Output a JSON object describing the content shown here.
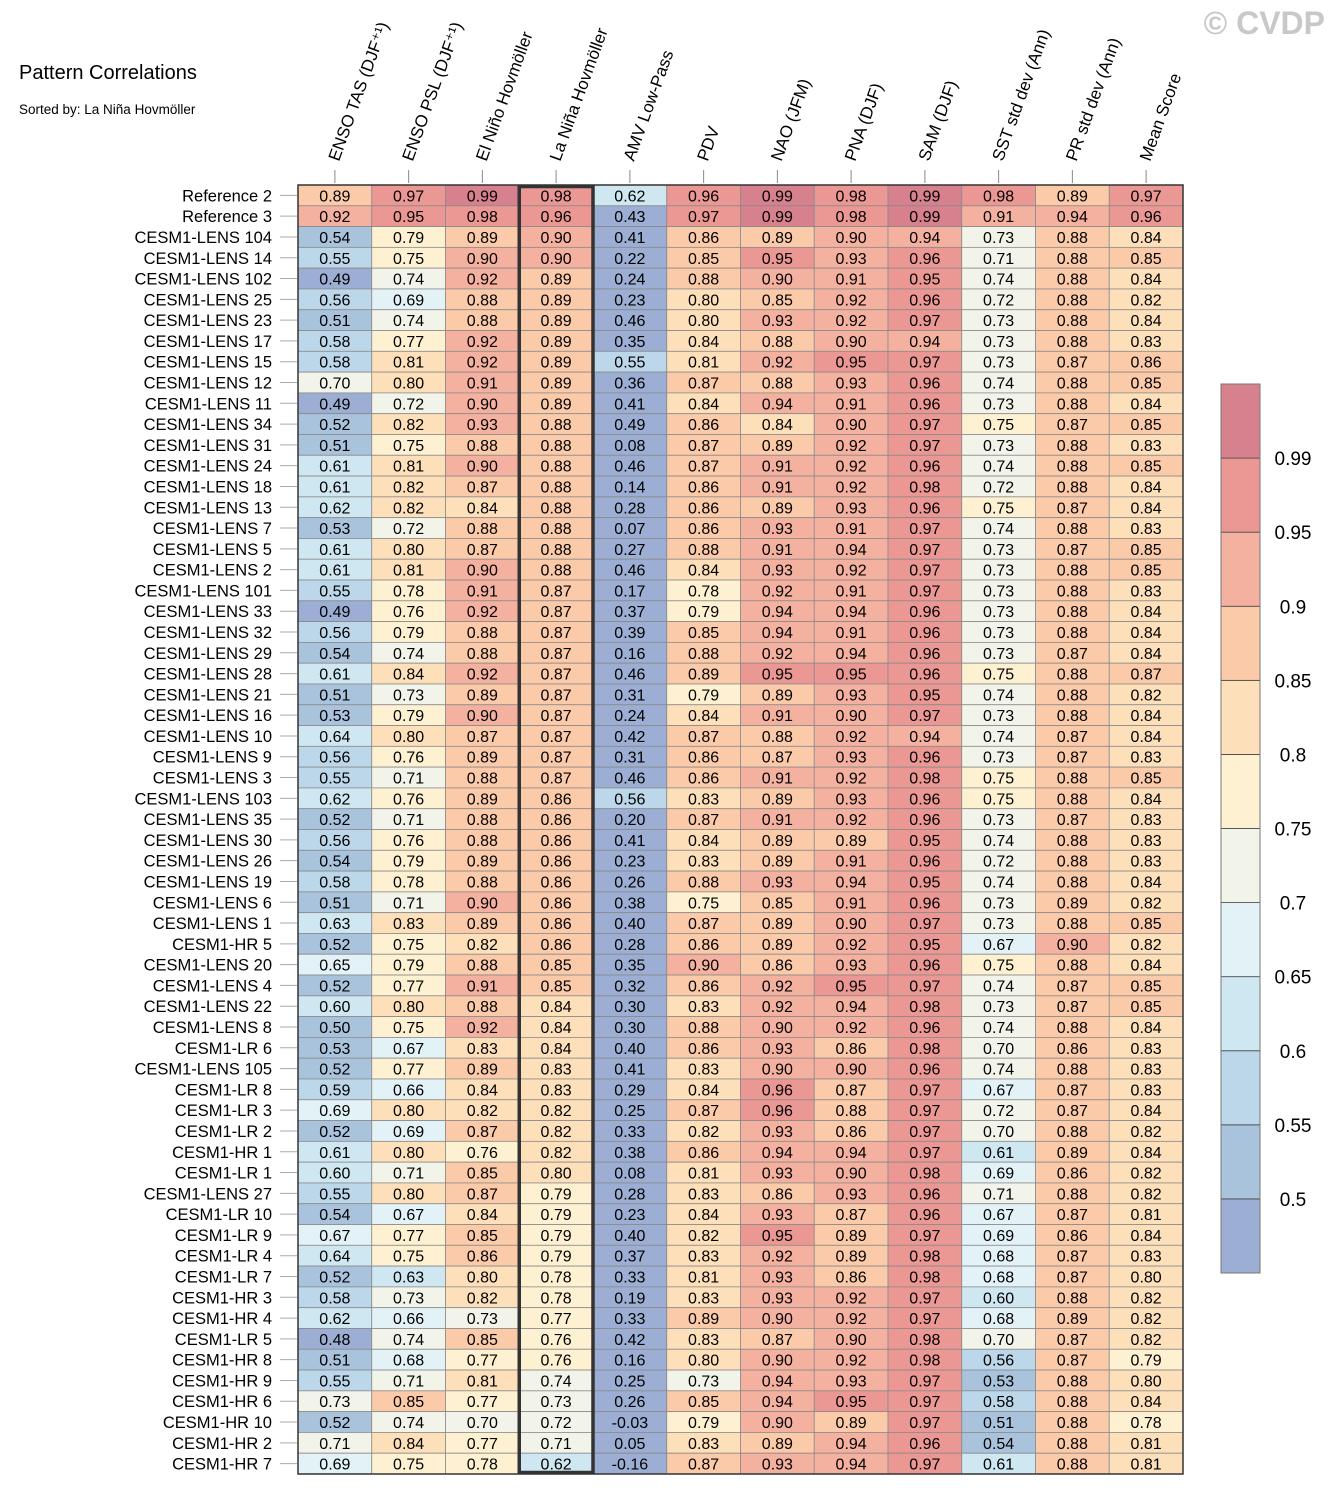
{
  "title": "Pattern Correlations",
  "subtitle": "Sorted by: La Niña Hovmöller",
  "watermark": "© CVDP",
  "chart_data": {
    "type": "heatmap",
    "title": "Pattern Correlations",
    "subtitle": "Sorted by: La Niña Hovmöller",
    "highlighted_column": "La Niña Hovmöller",
    "columns": [
      "ENSO TAS (DJF⁺¹)",
      "ENSO PSL (DJF⁺¹)",
      "El Niño Hovmöller",
      "La Niña Hovmöller",
      "AMV Low-Pass",
      "PDV",
      "NAO (JFM)",
      "PNA (DJF)",
      "SAM (DJF)",
      "SST std dev (Ann)",
      "PR std dev (Ann)",
      "Mean Score"
    ],
    "rows": [
      {
        "label": "Reference 2",
        "values": [
          0.89,
          0.97,
          0.99,
          0.98,
          0.62,
          0.96,
          0.99,
          0.98,
          0.99,
          0.98,
          0.89,
          0.97
        ]
      },
      {
        "label": "Reference 3",
        "values": [
          0.92,
          0.95,
          0.98,
          0.96,
          0.43,
          0.97,
          0.99,
          0.98,
          0.99,
          0.91,
          0.94,
          0.96
        ]
      },
      {
        "label": "CESM1-LENS 104",
        "values": [
          0.54,
          0.79,
          0.89,
          0.9,
          0.41,
          0.86,
          0.89,
          0.9,
          0.94,
          0.73,
          0.88,
          0.84
        ]
      },
      {
        "label": "CESM1-LENS 14",
        "values": [
          0.55,
          0.75,
          0.9,
          0.9,
          0.22,
          0.85,
          0.95,
          0.93,
          0.96,
          0.71,
          0.88,
          0.85
        ]
      },
      {
        "label": "CESM1-LENS 102",
        "values": [
          0.49,
          0.74,
          0.92,
          0.89,
          0.24,
          0.88,
          0.9,
          0.91,
          0.95,
          0.74,
          0.88,
          0.84
        ]
      },
      {
        "label": "CESM1-LENS 25",
        "values": [
          0.56,
          0.69,
          0.88,
          0.89,
          0.23,
          0.8,
          0.85,
          0.92,
          0.96,
          0.72,
          0.88,
          0.82
        ]
      },
      {
        "label": "CESM1-LENS 23",
        "values": [
          0.51,
          0.74,
          0.88,
          0.89,
          0.46,
          0.8,
          0.93,
          0.92,
          0.97,
          0.73,
          0.88,
          0.84
        ]
      },
      {
        "label": "CESM1-LENS 17",
        "values": [
          0.58,
          0.77,
          0.92,
          0.89,
          0.35,
          0.84,
          0.88,
          0.9,
          0.94,
          0.73,
          0.88,
          0.83
        ]
      },
      {
        "label": "CESM1-LENS 15",
        "values": [
          0.58,
          0.81,
          0.92,
          0.89,
          0.55,
          0.81,
          0.92,
          0.95,
          0.97,
          0.73,
          0.87,
          0.86
        ]
      },
      {
        "label": "CESM1-LENS 12",
        "values": [
          0.7,
          0.8,
          0.91,
          0.89,
          0.36,
          0.87,
          0.88,
          0.93,
          0.96,
          0.74,
          0.88,
          0.85
        ]
      },
      {
        "label": "CESM1-LENS 11",
        "values": [
          0.49,
          0.72,
          0.9,
          0.89,
          0.41,
          0.84,
          0.94,
          0.91,
          0.96,
          0.73,
          0.88,
          0.84
        ]
      },
      {
        "label": "CESM1-LENS 34",
        "values": [
          0.52,
          0.82,
          0.93,
          0.88,
          0.49,
          0.86,
          0.84,
          0.9,
          0.97,
          0.75,
          0.87,
          0.85
        ]
      },
      {
        "label": "CESM1-LENS 31",
        "values": [
          0.51,
          0.75,
          0.88,
          0.88,
          0.08,
          0.87,
          0.89,
          0.92,
          0.97,
          0.73,
          0.88,
          0.83
        ]
      },
      {
        "label": "CESM1-LENS 24",
        "values": [
          0.61,
          0.81,
          0.9,
          0.88,
          0.46,
          0.87,
          0.91,
          0.92,
          0.96,
          0.74,
          0.88,
          0.85
        ]
      },
      {
        "label": "CESM1-LENS 18",
        "values": [
          0.61,
          0.82,
          0.87,
          0.88,
          0.14,
          0.86,
          0.91,
          0.92,
          0.98,
          0.72,
          0.88,
          0.84
        ]
      },
      {
        "label": "CESM1-LENS 13",
        "values": [
          0.62,
          0.82,
          0.84,
          0.88,
          0.28,
          0.86,
          0.89,
          0.93,
          0.96,
          0.75,
          0.87,
          0.84
        ]
      },
      {
        "label": "CESM1-LENS 7",
        "values": [
          0.53,
          0.72,
          0.88,
          0.88,
          0.07,
          0.86,
          0.93,
          0.91,
          0.97,
          0.74,
          0.88,
          0.83
        ]
      },
      {
        "label": "CESM1-LENS 5",
        "values": [
          0.61,
          0.8,
          0.87,
          0.88,
          0.27,
          0.88,
          0.91,
          0.94,
          0.97,
          0.73,
          0.87,
          0.85
        ]
      },
      {
        "label": "CESM1-LENS 2",
        "values": [
          0.61,
          0.81,
          0.9,
          0.88,
          0.46,
          0.84,
          0.93,
          0.92,
          0.97,
          0.73,
          0.88,
          0.85
        ]
      },
      {
        "label": "CESM1-LENS 101",
        "values": [
          0.55,
          0.78,
          0.91,
          0.87,
          0.17,
          0.78,
          0.92,
          0.91,
          0.97,
          0.73,
          0.88,
          0.83
        ]
      },
      {
        "label": "CESM1-LENS 33",
        "values": [
          0.49,
          0.76,
          0.92,
          0.87,
          0.37,
          0.79,
          0.94,
          0.94,
          0.96,
          0.73,
          0.88,
          0.84
        ]
      },
      {
        "label": "CESM1-LENS 32",
        "values": [
          0.56,
          0.79,
          0.88,
          0.87,
          0.39,
          0.85,
          0.94,
          0.91,
          0.96,
          0.73,
          0.88,
          0.84
        ]
      },
      {
        "label": "CESM1-LENS 29",
        "values": [
          0.54,
          0.74,
          0.88,
          0.87,
          0.16,
          0.88,
          0.92,
          0.94,
          0.96,
          0.73,
          0.87,
          0.84
        ]
      },
      {
        "label": "CESM1-LENS 28",
        "values": [
          0.61,
          0.84,
          0.92,
          0.87,
          0.46,
          0.89,
          0.95,
          0.95,
          0.96,
          0.75,
          0.88,
          0.87
        ]
      },
      {
        "label": "CESM1-LENS 21",
        "values": [
          0.51,
          0.73,
          0.89,
          0.87,
          0.31,
          0.79,
          0.89,
          0.93,
          0.95,
          0.74,
          0.88,
          0.82
        ]
      },
      {
        "label": "CESM1-LENS 16",
        "values": [
          0.53,
          0.79,
          0.9,
          0.87,
          0.24,
          0.84,
          0.91,
          0.9,
          0.97,
          0.73,
          0.88,
          0.84
        ]
      },
      {
        "label": "CESM1-LENS 10",
        "values": [
          0.64,
          0.8,
          0.87,
          0.87,
          0.42,
          0.87,
          0.88,
          0.92,
          0.94,
          0.74,
          0.87,
          0.84
        ]
      },
      {
        "label": "CESM1-LENS 9",
        "values": [
          0.56,
          0.76,
          0.89,
          0.87,
          0.31,
          0.86,
          0.87,
          0.93,
          0.96,
          0.73,
          0.87,
          0.83
        ]
      },
      {
        "label": "CESM1-LENS 3",
        "values": [
          0.55,
          0.71,
          0.88,
          0.87,
          0.46,
          0.86,
          0.91,
          0.92,
          0.98,
          0.75,
          0.88,
          0.85
        ]
      },
      {
        "label": "CESM1-LENS 103",
        "values": [
          0.62,
          0.76,
          0.89,
          0.86,
          0.56,
          0.83,
          0.89,
          0.93,
          0.96,
          0.75,
          0.88,
          0.84
        ]
      },
      {
        "label": "CESM1-LENS 35",
        "values": [
          0.52,
          0.71,
          0.88,
          0.86,
          0.2,
          0.87,
          0.91,
          0.92,
          0.96,
          0.73,
          0.87,
          0.83
        ]
      },
      {
        "label": "CESM1-LENS 30",
        "values": [
          0.56,
          0.76,
          0.88,
          0.86,
          0.41,
          0.84,
          0.89,
          0.89,
          0.95,
          0.74,
          0.88,
          0.83
        ]
      },
      {
        "label": "CESM1-LENS 26",
        "values": [
          0.54,
          0.79,
          0.89,
          0.86,
          0.23,
          0.83,
          0.89,
          0.91,
          0.96,
          0.72,
          0.88,
          0.83
        ]
      },
      {
        "label": "CESM1-LENS 19",
        "values": [
          0.58,
          0.78,
          0.88,
          0.86,
          0.26,
          0.88,
          0.93,
          0.94,
          0.95,
          0.74,
          0.88,
          0.84
        ]
      },
      {
        "label": "CESM1-LENS 6",
        "values": [
          0.51,
          0.71,
          0.9,
          0.86,
          0.38,
          0.75,
          0.85,
          0.91,
          0.96,
          0.73,
          0.89,
          0.82
        ]
      },
      {
        "label": "CESM1-LENS 1",
        "values": [
          0.63,
          0.83,
          0.89,
          0.86,
          0.4,
          0.87,
          0.89,
          0.9,
          0.97,
          0.73,
          0.88,
          0.85
        ]
      },
      {
        "label": "CESM1-HR 5",
        "values": [
          0.52,
          0.75,
          0.82,
          0.86,
          0.28,
          0.86,
          0.89,
          0.92,
          0.95,
          0.67,
          0.9,
          0.82
        ]
      },
      {
        "label": "CESM1-LENS 20",
        "values": [
          0.65,
          0.79,
          0.88,
          0.85,
          0.35,
          0.9,
          0.86,
          0.93,
          0.96,
          0.75,
          0.88,
          0.84
        ]
      },
      {
        "label": "CESM1-LENS 4",
        "values": [
          0.52,
          0.77,
          0.91,
          0.85,
          0.32,
          0.86,
          0.92,
          0.95,
          0.97,
          0.74,
          0.87,
          0.85
        ]
      },
      {
        "label": "CESM1-LENS 22",
        "values": [
          0.6,
          0.8,
          0.88,
          0.84,
          0.3,
          0.83,
          0.92,
          0.94,
          0.98,
          0.73,
          0.87,
          0.85
        ]
      },
      {
        "label": "CESM1-LENS 8",
        "values": [
          0.5,
          0.75,
          0.92,
          0.84,
          0.3,
          0.88,
          0.9,
          0.92,
          0.96,
          0.74,
          0.88,
          0.84
        ]
      },
      {
        "label": "CESM1-LR 6",
        "values": [
          0.53,
          0.67,
          0.83,
          0.84,
          0.4,
          0.86,
          0.93,
          0.86,
          0.98,
          0.7,
          0.86,
          0.83
        ]
      },
      {
        "label": "CESM1-LENS 105",
        "values": [
          0.52,
          0.77,
          0.89,
          0.83,
          0.41,
          0.83,
          0.9,
          0.9,
          0.96,
          0.74,
          0.88,
          0.83
        ]
      },
      {
        "label": "CESM1-LR 8",
        "values": [
          0.59,
          0.66,
          0.84,
          0.83,
          0.29,
          0.84,
          0.96,
          0.87,
          0.97,
          0.67,
          0.87,
          0.83
        ]
      },
      {
        "label": "CESM1-LR 3",
        "values": [
          0.69,
          0.8,
          0.82,
          0.82,
          0.25,
          0.87,
          0.96,
          0.88,
          0.97,
          0.72,
          0.87,
          0.84
        ]
      },
      {
        "label": "CESM1-LR 2",
        "values": [
          0.52,
          0.69,
          0.87,
          0.82,
          0.33,
          0.82,
          0.93,
          0.86,
          0.97,
          0.7,
          0.88,
          0.82
        ]
      },
      {
        "label": "CESM1-HR 1",
        "values": [
          0.61,
          0.8,
          0.76,
          0.82,
          0.38,
          0.86,
          0.94,
          0.94,
          0.97,
          0.61,
          0.89,
          0.84
        ]
      },
      {
        "label": "CESM1-LR 1",
        "values": [
          0.6,
          0.71,
          0.85,
          0.8,
          0.08,
          0.81,
          0.93,
          0.9,
          0.98,
          0.69,
          0.86,
          0.82
        ]
      },
      {
        "label": "CESM1-LENS 27",
        "values": [
          0.55,
          0.8,
          0.87,
          0.79,
          0.28,
          0.83,
          0.86,
          0.93,
          0.96,
          0.71,
          0.88,
          0.82
        ]
      },
      {
        "label": "CESM1-LR 10",
        "values": [
          0.54,
          0.67,
          0.84,
          0.79,
          0.23,
          0.84,
          0.93,
          0.87,
          0.96,
          0.67,
          0.87,
          0.81
        ]
      },
      {
        "label": "CESM1-LR 9",
        "values": [
          0.67,
          0.77,
          0.85,
          0.79,
          0.4,
          0.82,
          0.95,
          0.89,
          0.97,
          0.69,
          0.86,
          0.84
        ]
      },
      {
        "label": "CESM1-LR 4",
        "values": [
          0.64,
          0.75,
          0.86,
          0.79,
          0.37,
          0.83,
          0.92,
          0.89,
          0.98,
          0.68,
          0.87,
          0.83
        ]
      },
      {
        "label": "CESM1-LR 7",
        "values": [
          0.52,
          0.63,
          0.8,
          0.78,
          0.33,
          0.81,
          0.93,
          0.86,
          0.98,
          0.68,
          0.87,
          0.8
        ]
      },
      {
        "label": "CESM1-HR 3",
        "values": [
          0.58,
          0.73,
          0.82,
          0.78,
          0.19,
          0.83,
          0.93,
          0.92,
          0.97,
          0.6,
          0.88,
          0.82
        ]
      },
      {
        "label": "CESM1-HR 4",
        "values": [
          0.62,
          0.66,
          0.73,
          0.77,
          0.33,
          0.89,
          0.9,
          0.92,
          0.97,
          0.68,
          0.89,
          0.82
        ]
      },
      {
        "label": "CESM1-LR 5",
        "values": [
          0.48,
          0.74,
          0.85,
          0.76,
          0.42,
          0.83,
          0.87,
          0.9,
          0.98,
          0.7,
          0.87,
          0.82
        ]
      },
      {
        "label": "CESM1-HR 8",
        "values": [
          0.51,
          0.68,
          0.77,
          0.76,
          0.16,
          0.8,
          0.9,
          0.92,
          0.98,
          0.56,
          0.87,
          0.79
        ]
      },
      {
        "label": "CESM1-HR 9",
        "values": [
          0.55,
          0.71,
          0.81,
          0.74,
          0.25,
          0.73,
          0.94,
          0.93,
          0.97,
          0.53,
          0.88,
          0.8
        ]
      },
      {
        "label": "CESM1-HR 6",
        "values": [
          0.73,
          0.85,
          0.77,
          0.73,
          0.26,
          0.85,
          0.94,
          0.95,
          0.97,
          0.58,
          0.88,
          0.84
        ]
      },
      {
        "label": "CESM1-HR 10",
        "values": [
          0.52,
          0.74,
          0.7,
          0.72,
          -0.03,
          0.79,
          0.9,
          0.89,
          0.97,
          0.51,
          0.88,
          0.78
        ]
      },
      {
        "label": "CESM1-HR 2",
        "values": [
          0.71,
          0.84,
          0.77,
          0.71,
          0.05,
          0.83,
          0.89,
          0.94,
          0.96,
          0.54,
          0.88,
          0.81
        ]
      },
      {
        "label": "CESM1-HR 7",
        "values": [
          0.69,
          0.75,
          0.78,
          0.62,
          -0.16,
          0.87,
          0.93,
          0.94,
          0.97,
          0.61,
          0.88,
          0.81
        ]
      }
    ],
    "colorbar": {
      "boundaries": [
        0.5,
        0.55,
        0.6,
        0.65,
        0.7,
        0.75,
        0.8,
        0.85,
        0.9,
        0.95,
        0.99
      ],
      "tick_labels": [
        "0.5",
        "0.55",
        "0.6",
        "0.65",
        "0.7",
        "0.75",
        "0.8",
        "0.85",
        "0.9",
        "0.95",
        "0.99"
      ],
      "colors": [
        "#9caed3",
        "#a9c3dd",
        "#bcd7ea",
        "#cfe7f1",
        "#e3f2f7",
        "#f3f4e9",
        "#fdf1d1",
        "#fde0ba",
        "#fbcaa9",
        "#f5b1a0",
        "#eb9793",
        "#d7818f"
      ],
      "placement": "right"
    }
  }
}
